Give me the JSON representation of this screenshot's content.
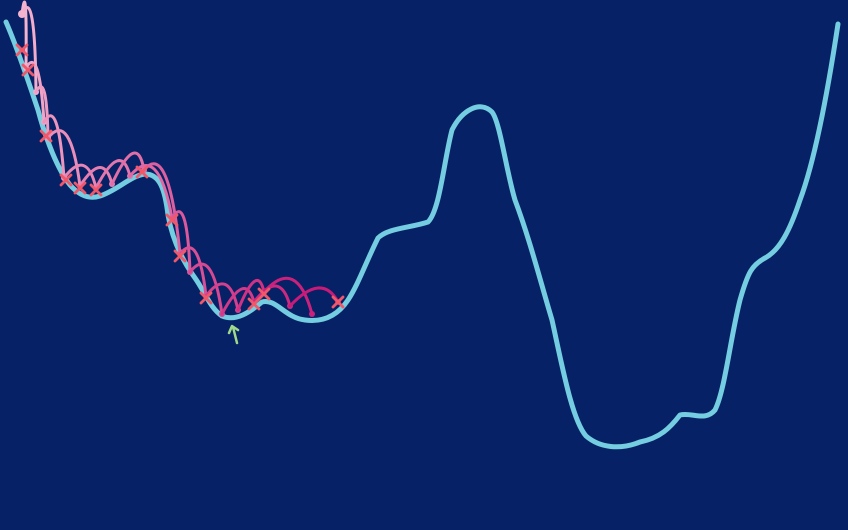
{
  "colors": {
    "background": "#062165",
    "landscape_curve": "#74cde0",
    "rejected_marker": "#f0586a",
    "minimum_arrow": "#9fd98a",
    "hop_start": "#f4b4d0",
    "hop_end": "#c81a78"
  },
  "markers": {
    "rejected_shape": "cross",
    "minimum_shape": "arrow-up"
  }
}
